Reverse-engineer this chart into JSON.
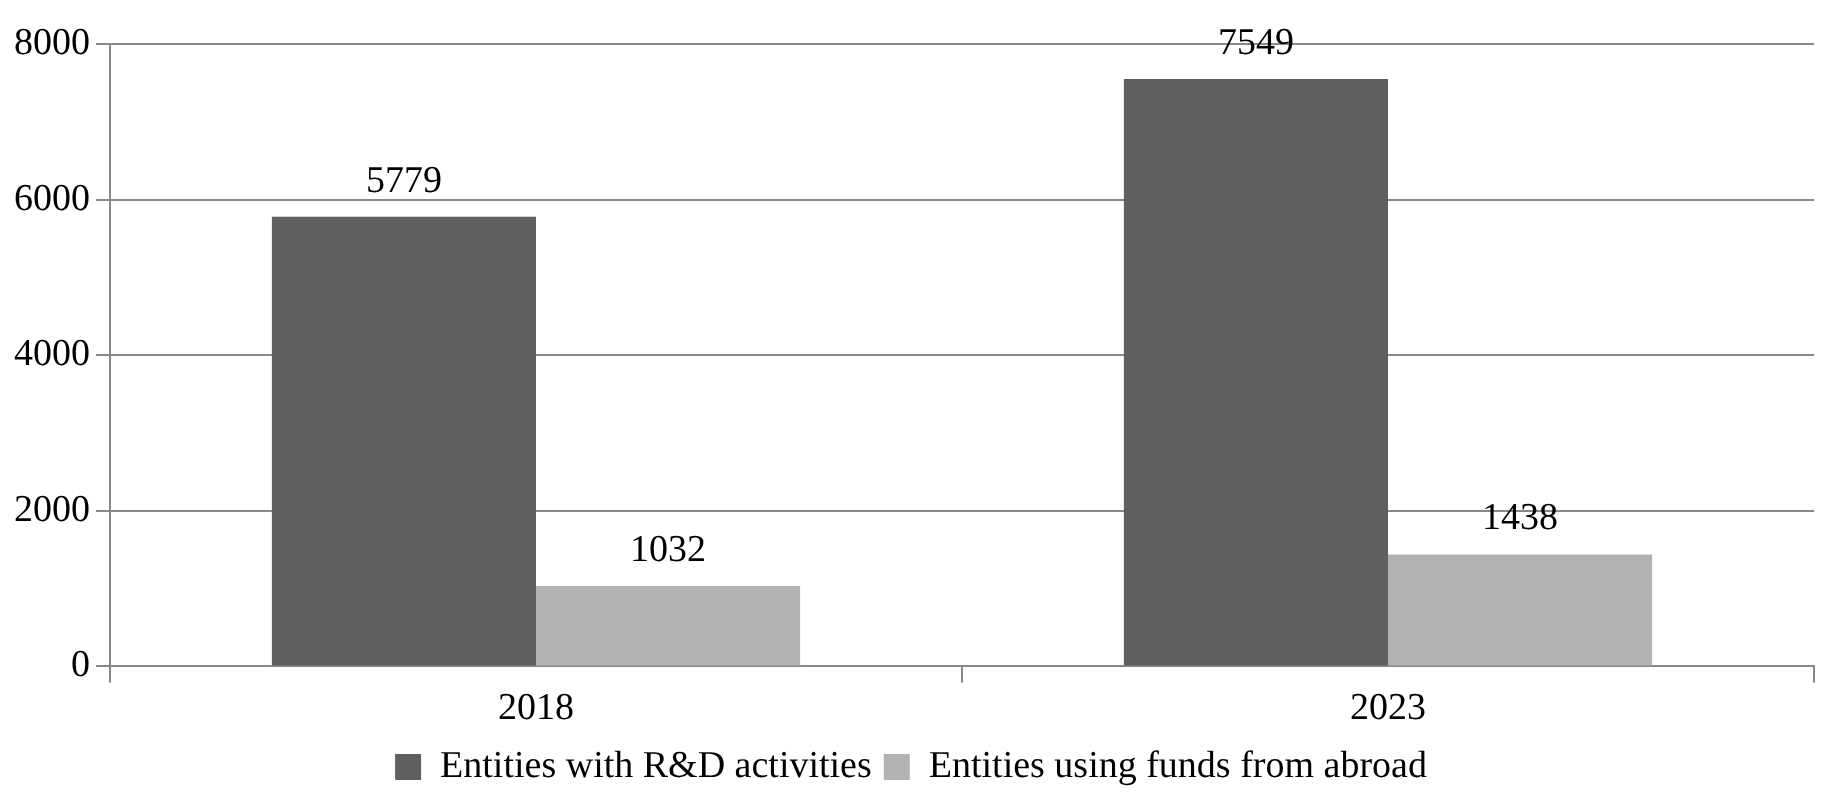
{
  "chart_data": {
    "type": "bar",
    "categories": [
      "2018",
      "2023"
    ],
    "series": [
      {
        "name": "Entities with R&D activities",
        "color": "#5f5f5f",
        "values": [
          5779,
          7549
        ]
      },
      {
        "name": "Entities using funds from abroad",
        "color": "#b2b2b2",
        "values": [
          1032,
          1438
        ]
      }
    ],
    "ylim": [
      0,
      8000
    ],
    "yticks": [
      0,
      2000,
      4000,
      6000,
      8000
    ],
    "grid": "y",
    "legend": "bottom",
    "data_labels": true
  }
}
